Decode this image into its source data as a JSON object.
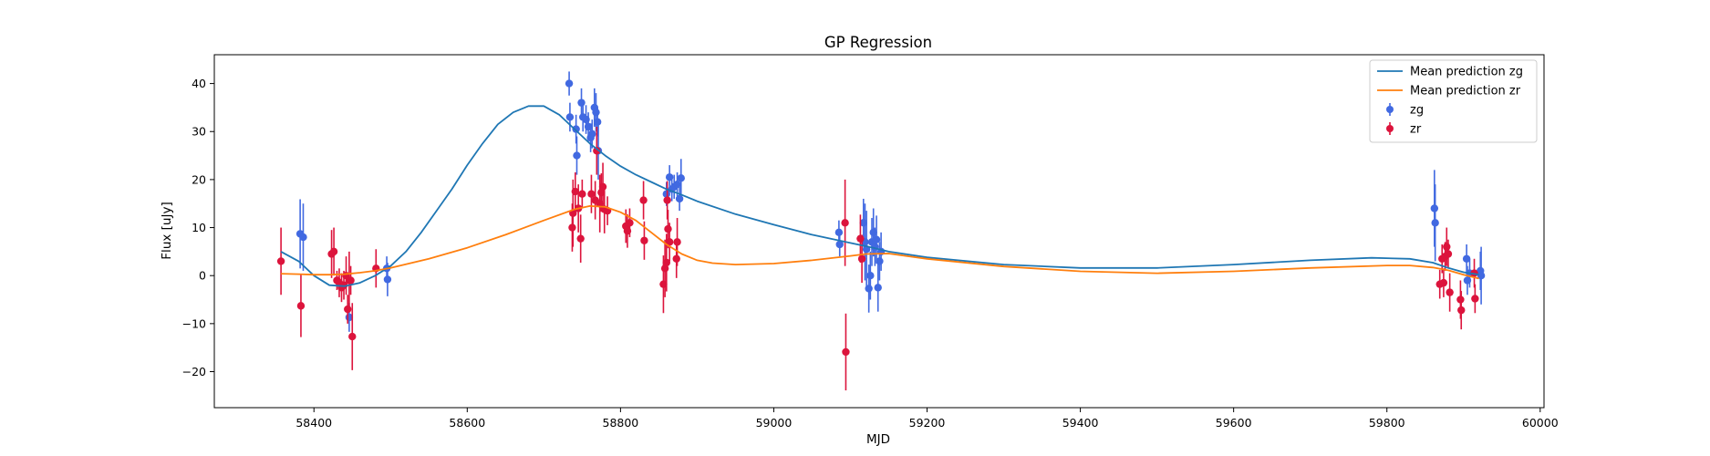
{
  "chart_data": {
    "type": "scatter",
    "title": "GP Regression",
    "xlabel": "MJD",
    "ylabel": "Flux [uJy]",
    "xlim": [
      58270,
      60005
    ],
    "ylim": [
      -27.5,
      46
    ],
    "xticks": [
      58400,
      58600,
      58800,
      59000,
      59200,
      59400,
      59600,
      59800,
      60000
    ],
    "yticks": [
      -20,
      -10,
      0,
      10,
      20,
      30,
      40
    ],
    "grid": false,
    "legend_position": "top-right",
    "colors": {
      "zg_line": "#1f77b4",
      "zr_line": "#ff7f0e",
      "zg_points": "#4169e1",
      "zr_points": "#dc143c"
    },
    "lines": [
      {
        "name": "Mean prediction zg",
        "x": [
          58357,
          58380,
          58400,
          58420,
          58440,
          58460,
          58480,
          58500,
          58520,
          58540,
          58560,
          58580,
          58600,
          58620,
          58640,
          58660,
          58680,
          58700,
          58720,
          58740,
          58760,
          58780,
          58800,
          58820,
          58840,
          58860,
          58880,
          58900,
          58950,
          59000,
          59050,
          59100,
          59130,
          59150,
          59200,
          59300,
          59400,
          59500,
          59600,
          59700,
          59780,
          59830,
          59860,
          59880,
          59900,
          59920
        ],
        "y": [
          5,
          3,
          0,
          -2,
          -2.2,
          -1.5,
          0,
          2,
          5,
          9,
          13.5,
          18,
          23,
          27.5,
          31.5,
          34,
          35.3,
          35.3,
          33.5,
          30.5,
          27.5,
          25,
          22.8,
          21,
          19.5,
          18,
          16.8,
          15.5,
          12.8,
          10.6,
          8.5,
          6.8,
          5.8,
          5,
          3.8,
          2.3,
          1.6,
          1.6,
          2.3,
          3.2,
          3.7,
          3.5,
          2.7,
          1.6,
          0.7,
          0.2
        ]
      },
      {
        "name": "Mean prediction zr",
        "x": [
          58357,
          58380,
          58400,
          58420,
          58440,
          58460,
          58480,
          58500,
          58550,
          58600,
          58650,
          58700,
          58740,
          58760,
          58780,
          58800,
          58820,
          58840,
          58860,
          58880,
          58900,
          58920,
          58950,
          59000,
          59050,
          59100,
          59120,
          59150,
          59200,
          59300,
          59400,
          59500,
          59600,
          59700,
          59800,
          59830,
          59860,
          59880,
          59900,
          59920
        ],
        "y": [
          0.4,
          0.3,
          0.2,
          0.2,
          0.3,
          0.6,
          1.0,
          1.6,
          3.5,
          5.8,
          8.5,
          11.5,
          13.8,
          14.5,
          14.3,
          13.2,
          11.5,
          9.0,
          6.5,
          4.5,
          3.2,
          2.6,
          2.3,
          2.5,
          3.2,
          4.1,
          4.5,
          4.6,
          3.5,
          1.9,
          0.9,
          0.5,
          0.9,
          1.6,
          2.1,
          2.1,
          1.7,
          1.1,
          0.2,
          -0.6
        ]
      }
    ],
    "series": [
      {
        "name": "zg",
        "points": [
          [
            58382,
            8.7,
            7.2
          ],
          [
            58386,
            8,
            7
          ],
          [
            58446,
            -8.7,
            3
          ],
          [
            58495,
            1.5,
            2.5
          ],
          [
            58496,
            -0.8,
            3.5
          ],
          [
            58733,
            40,
            2.5
          ],
          [
            58734,
            33,
            3
          ],
          [
            58742,
            30.5,
            3
          ],
          [
            58743,
            25,
            4
          ],
          [
            58749,
            36,
            3
          ],
          [
            58751,
            33,
            3
          ],
          [
            58755,
            32.5,
            3
          ],
          [
            58758,
            31,
            3
          ],
          [
            58761,
            28.7,
            3
          ],
          [
            58763,
            29.5,
            3
          ],
          [
            58766,
            35,
            4
          ],
          [
            58768,
            34,
            4
          ],
          [
            58770,
            32,
            3
          ],
          [
            58771,
            26,
            6
          ],
          [
            58860,
            17,
            2.5
          ],
          [
            58864,
            20.5,
            2.5
          ],
          [
            58867,
            18,
            2.5
          ],
          [
            58870,
            18.5,
            2.5
          ],
          [
            58874,
            19,
            2.5
          ],
          [
            58877,
            16,
            2.5
          ],
          [
            58879,
            20.3,
            4
          ],
          [
            59085,
            9,
            2.5
          ],
          [
            59086,
            6.5,
            2.5
          ],
          [
            59117,
            11,
            5
          ],
          [
            59119,
            7,
            8
          ],
          [
            59121,
            5.5,
            8
          ],
          [
            59124,
            -2.7,
            5
          ],
          [
            59126,
            0,
            5
          ],
          [
            59128,
            7,
            5
          ],
          [
            59130,
            9,
            5
          ],
          [
            59132,
            6,
            4
          ],
          [
            59134,
            7.5,
            5
          ],
          [
            59136,
            -2.5,
            5
          ],
          [
            59138,
            3,
            4
          ],
          [
            59140,
            5,
            4
          ],
          [
            59862,
            14,
            8
          ],
          [
            59863,
            11,
            8
          ],
          [
            59904,
            3.5,
            3
          ],
          [
            59905,
            -1,
            3
          ],
          [
            59908,
            0.5,
            3
          ],
          [
            59922,
            1,
            4
          ],
          [
            59923,
            0,
            6
          ]
        ]
      },
      {
        "name": "zr",
        "points": [
          [
            58357,
            3,
            7
          ],
          [
            58383,
            -6.3,
            6.5
          ],
          [
            58423,
            4.5,
            5
          ],
          [
            58426,
            5,
            5
          ],
          [
            58430,
            -1,
            2
          ],
          [
            58433,
            -1.5,
            3
          ],
          [
            58436,
            -2.5,
            3
          ],
          [
            58439,
            -2,
            3
          ],
          [
            58442,
            0,
            4
          ],
          [
            58444,
            -7,
            3
          ],
          [
            58446,
            -1,
            6
          ],
          [
            58448,
            -1,
            3
          ],
          [
            58450,
            -12.7,
            7
          ],
          [
            58481,
            1.5,
            4
          ],
          [
            58737,
            10,
            5
          ],
          [
            58738,
            13,
            7
          ],
          [
            58741,
            17.5,
            4
          ],
          [
            58745,
            14,
            5
          ],
          [
            58748,
            7.7,
            5
          ],
          [
            58750,
            17,
            3
          ],
          [
            58762,
            17,
            4
          ],
          [
            58767,
            15.7,
            4
          ],
          [
            58769,
            26,
            5
          ],
          [
            58773,
            15,
            6
          ],
          [
            58775,
            17.3,
            4
          ],
          [
            58777,
            18.5,
            5
          ],
          [
            58779,
            13.8,
            5
          ],
          [
            58783,
            13.5,
            3
          ],
          [
            58807,
            10.3,
            3.5
          ],
          [
            58809,
            9.3,
            3.5
          ],
          [
            58812,
            11,
            3
          ],
          [
            58830,
            15.7,
            4
          ],
          [
            58831,
            7.3,
            4
          ],
          [
            58856,
            -1.8,
            6
          ],
          [
            58858,
            1.5,
            6
          ],
          [
            58860,
            2.7,
            6
          ],
          [
            58861,
            15.7,
            4
          ],
          [
            58862,
            9.7,
            4
          ],
          [
            58864,
            7,
            4
          ],
          [
            58873,
            3.5,
            4
          ],
          [
            58874,
            7,
            5
          ],
          [
            59093,
            11,
            9
          ],
          [
            59094,
            -15.9,
            8
          ],
          [
            59113,
            7.7,
            5
          ],
          [
            59115,
            3.5,
            5
          ],
          [
            59869,
            -1.8,
            3
          ],
          [
            59872,
            3.5,
            3
          ],
          [
            59874,
            -1.5,
            3
          ],
          [
            59876,
            4,
            3
          ],
          [
            59878,
            6,
            4
          ],
          [
            59880,
            4.5,
            3
          ],
          [
            59882,
            -3.5,
            4
          ],
          [
            59896,
            -5,
            4
          ],
          [
            59897,
            -7.2,
            4
          ],
          [
            59914,
            0.5,
            3
          ],
          [
            59915,
            -4.8,
            3
          ]
        ]
      }
    ],
    "legend": [
      "Mean prediction zg",
      "Mean prediction zr",
      "zg",
      "zr"
    ]
  }
}
